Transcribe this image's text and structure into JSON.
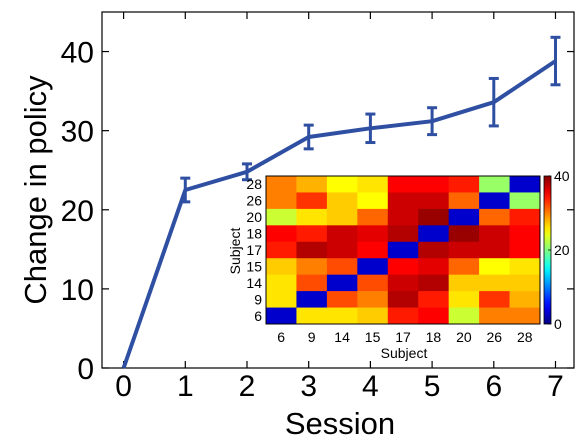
{
  "chart_data": [
    {
      "type": "line",
      "title": "",
      "xlabel": "Session",
      "ylabel": "Change in policy",
      "x": [
        0,
        1,
        2,
        3,
        4,
        5,
        6,
        7
      ],
      "x_tick_labels": [
        "0",
        "1",
        "2",
        "3",
        "4",
        "5",
        "6",
        "7"
      ],
      "y_tick_labels": [
        "0",
        "10",
        "20",
        "30",
        "40"
      ],
      "xlim": [
        -0.35,
        7.3
      ],
      "ylim": [
        0,
        45
      ],
      "grid": false,
      "series": [
        {
          "values": [
            0,
            22.5,
            24.8,
            29.2,
            30.3,
            31.2,
            33.6,
            38.8
          ],
          "error": [
            0,
            1.5,
            1.0,
            1.5,
            1.8,
            1.7,
            3.0,
            3.0
          ],
          "color": "#2e4fa2"
        }
      ]
    },
    {
      "type": "heatmap",
      "title": "",
      "xlabel": "Subject",
      "ylabel": "Subject",
      "x_categories": [
        "6",
        "9",
        "14",
        "15",
        "17",
        "18",
        "20",
        "26",
        "28"
      ],
      "y_categories_top_to_bottom": [
        "28",
        "26",
        "20",
        "18",
        "17",
        "15",
        "14",
        "9",
        "6"
      ],
      "colorbar_ticks": [
        "0",
        "20",
        "40"
      ],
      "colorbar_range": [
        0,
        40
      ],
      "colormap": "jet",
      "values": [
        [
          30,
          28,
          25,
          26,
          35,
          35,
          34,
          21,
          3
        ],
        [
          30,
          33,
          27,
          25,
          37,
          37,
          31,
          3,
          21
        ],
        [
          23,
          26,
          27,
          31,
          37,
          39,
          3,
          31,
          34
        ],
        [
          35,
          34,
          37,
          36,
          38,
          3,
          39,
          37,
          35
        ],
        [
          34,
          38,
          37,
          35,
          3,
          38,
          37,
          37,
          35
        ],
        [
          27,
          30,
          32,
          3,
          35,
          36,
          31,
          25,
          26
        ],
        [
          26,
          32,
          3,
          32,
          37,
          38,
          27,
          27,
          27
        ],
        [
          26,
          3,
          32,
          30,
          38,
          34,
          26,
          33,
          28
        ],
        [
          3,
          26,
          26,
          27,
          34,
          35,
          23,
          30,
          30
        ]
      ]
    }
  ]
}
